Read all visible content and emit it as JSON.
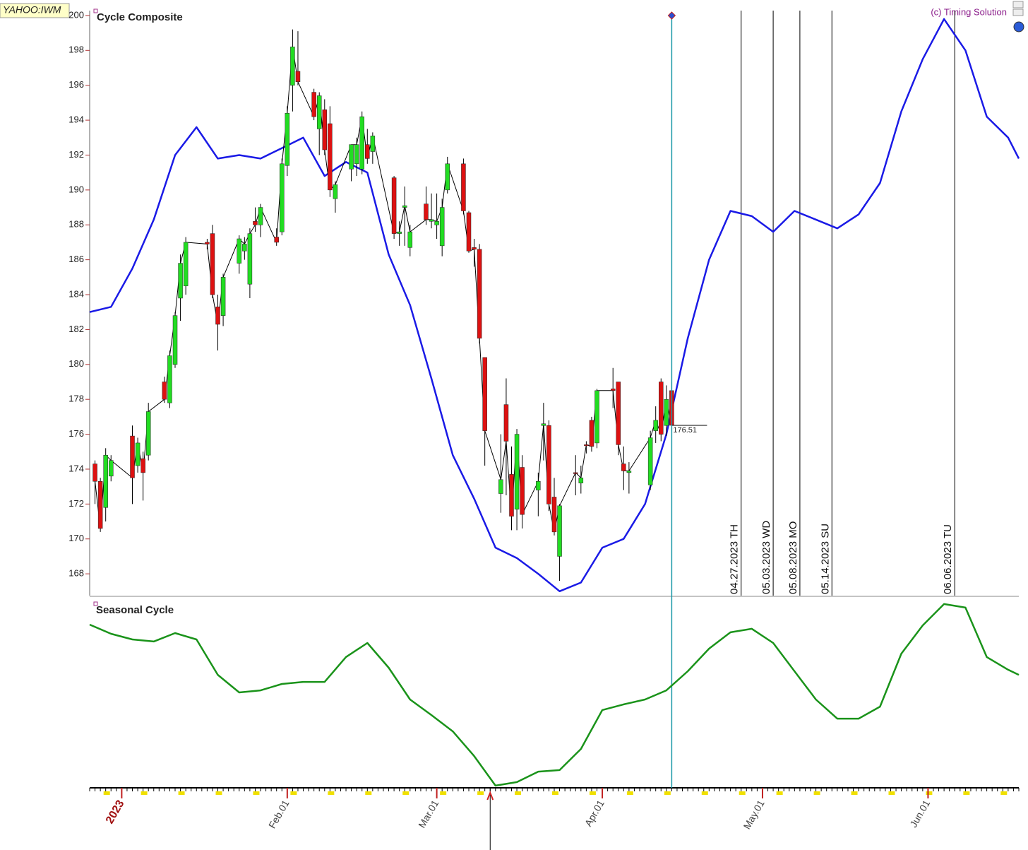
{
  "chart_data": [
    {
      "type": "candlestick",
      "title": "Cycle Composite",
      "symbol": "YAHOO:IWM",
      "credit": "(c) Timing Solution",
      "ylim": [
        166.75,
        200.28
      ],
      "yticks": [
        168,
        170,
        172,
        174,
        176,
        178,
        180,
        182,
        184,
        186,
        188,
        190,
        192,
        194,
        196,
        198,
        200
      ],
      "up_color": "#22dd22",
      "down_color": "#dd1111",
      "cursor_date": "2023-04-14",
      "cursor_color": "#1b9aa8",
      "dates": [
        "2022-12-27",
        "2022-12-28",
        "2022-12-29",
        "2022-12-30",
        "2023-01-03",
        "2023-01-04",
        "2023-01-05",
        "2023-01-06",
        "2023-01-09",
        "2023-01-10",
        "2023-01-11",
        "2023-01-12",
        "2023-01-13",
        "2023-01-17",
        "2023-01-18",
        "2023-01-19",
        "2023-01-20",
        "2023-01-23",
        "2023-01-24",
        "2023-01-25",
        "2023-01-26",
        "2023-01-27",
        "2023-01-30",
        "2023-01-31",
        "2023-02-01",
        "2023-02-02",
        "2023-02-03",
        "2023-02-06",
        "2023-02-07",
        "2023-02-08",
        "2023-02-09",
        "2023-02-10",
        "2023-02-13",
        "2023-02-14",
        "2023-02-15",
        "2023-02-16",
        "2023-02-17",
        "2023-02-21",
        "2023-02-22",
        "2023-02-23",
        "2023-02-24",
        "2023-02-27",
        "2023-02-28",
        "2023-03-01",
        "2023-03-02",
        "2023-03-03",
        "2023-03-06",
        "2023-03-07",
        "2023-03-08",
        "2023-03-09",
        "2023-03-10",
        "2023-03-13",
        "2023-03-14",
        "2023-03-15",
        "2023-03-16",
        "2023-03-17",
        "2023-03-20",
        "2023-03-21",
        "2023-03-22",
        "2023-03-23",
        "2023-03-24",
        "2023-03-27",
        "2023-03-28",
        "2023-03-29",
        "2023-03-30",
        "2023-03-31",
        "2023-04-03",
        "2023-04-04",
        "2023-04-05",
        "2023-04-06",
        "2023-04-10",
        "2023-04-11",
        "2023-04-12",
        "2023-04-13",
        "2023-04-14"
      ],
      "open": [
        174.3,
        173.3,
        171.8,
        173.6,
        175.9,
        174.2,
        174.6,
        174.8,
        179,
        177.8,
        180,
        183.8,
        184.5,
        187,
        187.5,
        183.3,
        182.8,
        185.8,
        186.5,
        184.6,
        188.2,
        188,
        187.3,
        187.6,
        191.4,
        196,
        196.8,
        195.6,
        193.5,
        194.6,
        193.8,
        189.5,
        191.2,
        191.5,
        191.2,
        192.6,
        192.2,
        190.7,
        187.5,
        189,
        186.7,
        189.2,
        188.2,
        188,
        186.8,
        190,
        191.5,
        188.7,
        186.7,
        186.6,
        180.4,
        172.6,
        177.7,
        173.7,
        171.7,
        174.1,
        172.8,
        176.5,
        176.5,
        172.4,
        169,
        173.8,
        173.2,
        175.4,
        176.8,
        175.5,
        178.6,
        179,
        174.3,
        173.8,
        173.1,
        176.2,
        179,
        176.5,
        178.5
      ],
      "high": [
        174.5,
        173.5,
        175.2,
        174.8,
        176.5,
        175.8,
        175,
        177.8,
        179.3,
        180.8,
        183,
        186.3,
        187.3,
        187.2,
        188,
        184,
        185.2,
        187.4,
        187.3,
        187.8,
        189,
        189.2,
        187.8,
        191.8,
        194.8,
        199.2,
        199.1,
        195.8,
        195.6,
        195.2,
        194.8,
        190.5,
        192.6,
        193,
        194.5,
        193.5,
        193.3,
        190.8,
        188.2,
        190.2,
        188,
        190.2,
        189.8,
        189.8,
        189.5,
        191.9,
        191.8,
        188.8,
        187.2,
        186.9,
        180.4,
        176,
        179.2,
        175.3,
        176.3,
        174.8,
        173.8,
        177.8,
        176.8,
        173.5,
        172,
        174.8,
        174.2,
        175.6,
        177,
        178.6,
        179.8,
        179,
        175.3,
        174.4,
        176.2,
        177.6,
        179.2,
        178.8,
        179
      ],
      "low": [
        172,
        170.4,
        171,
        173.3,
        172,
        173.8,
        172.2,
        174.5,
        177.8,
        177.5,
        179.8,
        182.5,
        184,
        186.6,
        183.8,
        180.8,
        182.2,
        185.2,
        186,
        183.8,
        187.6,
        187.3,
        186.8,
        187.4,
        190.8,
        194.5,
        196,
        194,
        192,
        192,
        189.6,
        188.7,
        190.5,
        190.8,
        190.9,
        191.5,
        191.5,
        187.2,
        186.8,
        186.8,
        186.2,
        188,
        187.8,
        187.2,
        186.2,
        189.8,
        188.6,
        186.4,
        185.6,
        181.2,
        174.2,
        171.5,
        172.5,
        170.5,
        170.5,
        170.6,
        171.3,
        174.5,
        171.6,
        170.2,
        167.6,
        172.5,
        172.6,
        174.9,
        175,
        175.2,
        177.5,
        174.8,
        172.8,
        172.6,
        172.8,
        175.5,
        175.6,
        175.9,
        176.2
      ],
      "close": [
        173.3,
        170.6,
        174.8,
        174.5,
        173.5,
        175.5,
        173.8,
        177.3,
        178,
        180.5,
        182.8,
        185.8,
        187,
        186.9,
        184,
        182.3,
        185,
        187.2,
        186.9,
        187.5,
        188,
        189,
        187,
        191.5,
        194.4,
        198.2,
        196.2,
        194.2,
        195.4,
        192.3,
        190,
        190.3,
        192.6,
        192.6,
        194.2,
        191.8,
        193.1,
        187.5,
        187.6,
        189.1,
        187.6,
        188.3,
        188.3,
        188.2,
        189,
        191.5,
        188.8,
        186.5,
        186.6,
        181.5,
        176.2,
        173.4,
        175.6,
        171.3,
        176,
        171.4,
        173.3,
        176.6,
        172,
        170.4,
        171.9,
        173.8,
        173.5,
        175.4,
        175.3,
        178.5,
        178.5,
        175.4,
        173.9,
        173.9,
        175.8,
        176.8,
        176,
        178,
        176.51
      ],
      "overlay": {
        "color": "#1a1ae6",
        "x": [
          "2022-12-26",
          "2022-12-30",
          "2023-01-03",
          "2023-01-07",
          "2023-01-11",
          "2023-01-15",
          "2023-01-19",
          "2023-01-23",
          "2023-01-27",
          "2023-01-31",
          "2023-02-04",
          "2023-02-08",
          "2023-02-12",
          "2023-02-16",
          "2023-02-20",
          "2023-02-24",
          "2023-02-28",
          "2023-03-04",
          "2023-03-08",
          "2023-03-12",
          "2023-03-16",
          "2023-03-20",
          "2023-03-24",
          "2023-03-28",
          "2023-04-01",
          "2023-04-05",
          "2023-04-09",
          "2023-04-13",
          "2023-04-17",
          "2023-04-21",
          "2023-04-25",
          "2023-04-29",
          "2023-05-03",
          "2023-05-07",
          "2023-05-11",
          "2023-05-15",
          "2023-05-19",
          "2023-05-23",
          "2023-05-27",
          "2023-05-31",
          "2023-06-04",
          "2023-06-08",
          "2023-06-12",
          "2023-06-16",
          "2023-06-18"
        ],
        "values": [
          183,
          183.3,
          185.5,
          188.3,
          192,
          193.6,
          191.8,
          192,
          191.8,
          192.4,
          193,
          190.8,
          191.6,
          191,
          186.3,
          183.4,
          179.2,
          174.8,
          172.3,
          169.5,
          168.9,
          168,
          167,
          167.5,
          169.5,
          170,
          172,
          176,
          181.5,
          186,
          188.8,
          188.5,
          187.6,
          188.8,
          188.3,
          187.8,
          188.6,
          190.4,
          194.5,
          197.5,
          199.8,
          198,
          194.2,
          193,
          191.8
        ]
      },
      "annotations": [
        {
          "date": "2023-04-27",
          "label": "04.27.2023 TH"
        },
        {
          "date": "2023-05-03",
          "label": "05.03.2023 WD"
        },
        {
          "date": "2023-05-08",
          "label": "05.08.2023 MO"
        },
        {
          "date": "2023-05-14",
          "label": "05.14.2023 SU"
        },
        {
          "date": "2023-06-06",
          "label": "06.06.2023 TU"
        }
      ]
    },
    {
      "type": "line",
      "title": "Seasonal Cycle",
      "color": "#1a931a",
      "ylim": [
        0,
        100
      ],
      "marker_date": "2023-03-11",
      "xlim": [
        "2022-12-26",
        "2023-06-18"
      ],
      "xticks": [
        {
          "value": "2023-01-01",
          "label": "2023"
        },
        {
          "value": "2023-02-01",
          "label": "Feb.01"
        },
        {
          "value": "2023-03-01",
          "label": "Mar.01"
        },
        {
          "value": "2023-04-01",
          "label": "Apr.01"
        },
        {
          "value": "2023-05-01",
          "label": "May.01"
        },
        {
          "value": "2023-06-01",
          "label": "Jun.01"
        }
      ],
      "x": [
        "2022-12-26",
        "2022-12-30",
        "2023-01-03",
        "2023-01-07",
        "2023-01-11",
        "2023-01-15",
        "2023-01-19",
        "2023-01-23",
        "2023-01-27",
        "2023-01-31",
        "2023-02-04",
        "2023-02-08",
        "2023-02-12",
        "2023-02-16",
        "2023-02-20",
        "2023-02-24",
        "2023-02-28",
        "2023-03-04",
        "2023-03-08",
        "2023-03-12",
        "2023-03-16",
        "2023-03-20",
        "2023-03-24",
        "2023-03-28",
        "2023-04-01",
        "2023-04-05",
        "2023-04-09",
        "2023-04-13",
        "2023-04-17",
        "2023-04-21",
        "2023-04-25",
        "2023-04-29",
        "2023-05-03",
        "2023-05-07",
        "2023-05-11",
        "2023-05-15",
        "2023-05-19",
        "2023-05-23",
        "2023-05-27",
        "2023-05-31",
        "2023-06-04",
        "2023-06-08",
        "2023-06-12",
        "2023-06-16",
        "2023-06-18"
      ],
      "values": [
        86.4,
        81.5,
        78.5,
        77.4,
        81.9,
        78.5,
        59.6,
        50.2,
        51.3,
        54.7,
        55.8,
        55.8,
        69.1,
        76.6,
        63.4,
        46.4,
        38.1,
        29.4,
        16.2,
        0.4,
        2.3,
        7.9,
        8.7,
        20,
        40.8,
        43.8,
        46.4,
        51.3,
        61.5,
        73.6,
        82.3,
        84.2,
        76.6,
        61.5,
        46.4,
        36.2,
        36.2,
        42.6,
        70.9,
        86,
        97.4,
        95.5,
        69.1,
        62.3,
        59.6
      ]
    }
  ]
}
